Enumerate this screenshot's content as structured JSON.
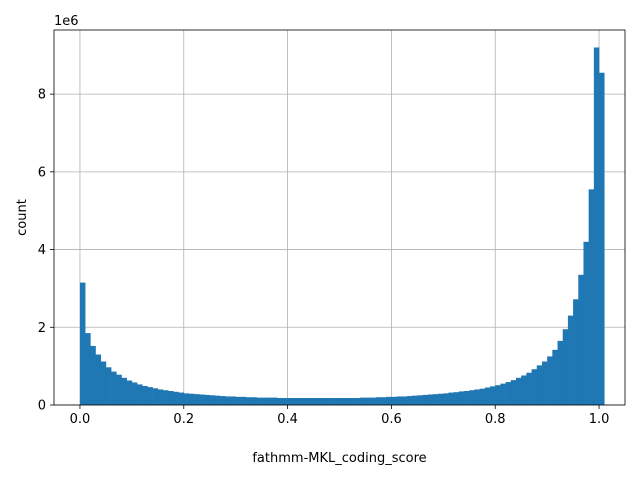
{
  "chart_data": {
    "type": "bar",
    "title": "",
    "xlabel": "fathmm-MKL_coding_score",
    "ylabel": "count",
    "y_offset_label": "1e6",
    "xlim": [
      -0.05,
      1.05
    ],
    "ylim": [
      0,
      9.65
    ],
    "x_ticks": [
      0.0,
      0.2,
      0.4,
      0.6,
      0.8,
      1.0
    ],
    "x_tick_labels": [
      "0.0",
      "0.2",
      "0.4",
      "0.6",
      "0.8",
      "1.0"
    ],
    "y_ticks": [
      0,
      2,
      4,
      6,
      8
    ],
    "y_tick_labels": [
      "0",
      "2",
      "4",
      "6",
      "8"
    ],
    "grid": true,
    "bar_color": "#1f77b4",
    "bin_width": 0.01,
    "bin_start": 0.0,
    "values": [
      3.15,
      1.85,
      1.52,
      1.3,
      1.12,
      0.97,
      0.86,
      0.78,
      0.7,
      0.63,
      0.58,
      0.53,
      0.49,
      0.46,
      0.43,
      0.4,
      0.38,
      0.36,
      0.34,
      0.32,
      0.3,
      0.29,
      0.28,
      0.27,
      0.26,
      0.25,
      0.24,
      0.23,
      0.22,
      0.22,
      0.21,
      0.21,
      0.2,
      0.2,
      0.19,
      0.19,
      0.19,
      0.19,
      0.18,
      0.18,
      0.18,
      0.18,
      0.18,
      0.18,
      0.18,
      0.18,
      0.18,
      0.18,
      0.18,
      0.18,
      0.18,
      0.18,
      0.18,
      0.18,
      0.19,
      0.19,
      0.19,
      0.2,
      0.2,
      0.21,
      0.21,
      0.22,
      0.22,
      0.23,
      0.24,
      0.25,
      0.26,
      0.27,
      0.28,
      0.29,
      0.3,
      0.32,
      0.33,
      0.35,
      0.36,
      0.38,
      0.4,
      0.42,
      0.45,
      0.48,
      0.51,
      0.55,
      0.59,
      0.64,
      0.7,
      0.76,
      0.83,
      0.92,
      1.02,
      1.12,
      1.25,
      1.42,
      1.65,
      1.95,
      2.3,
      2.72,
      3.35,
      4.2,
      5.55,
      9.2,
      8.55
    ]
  }
}
